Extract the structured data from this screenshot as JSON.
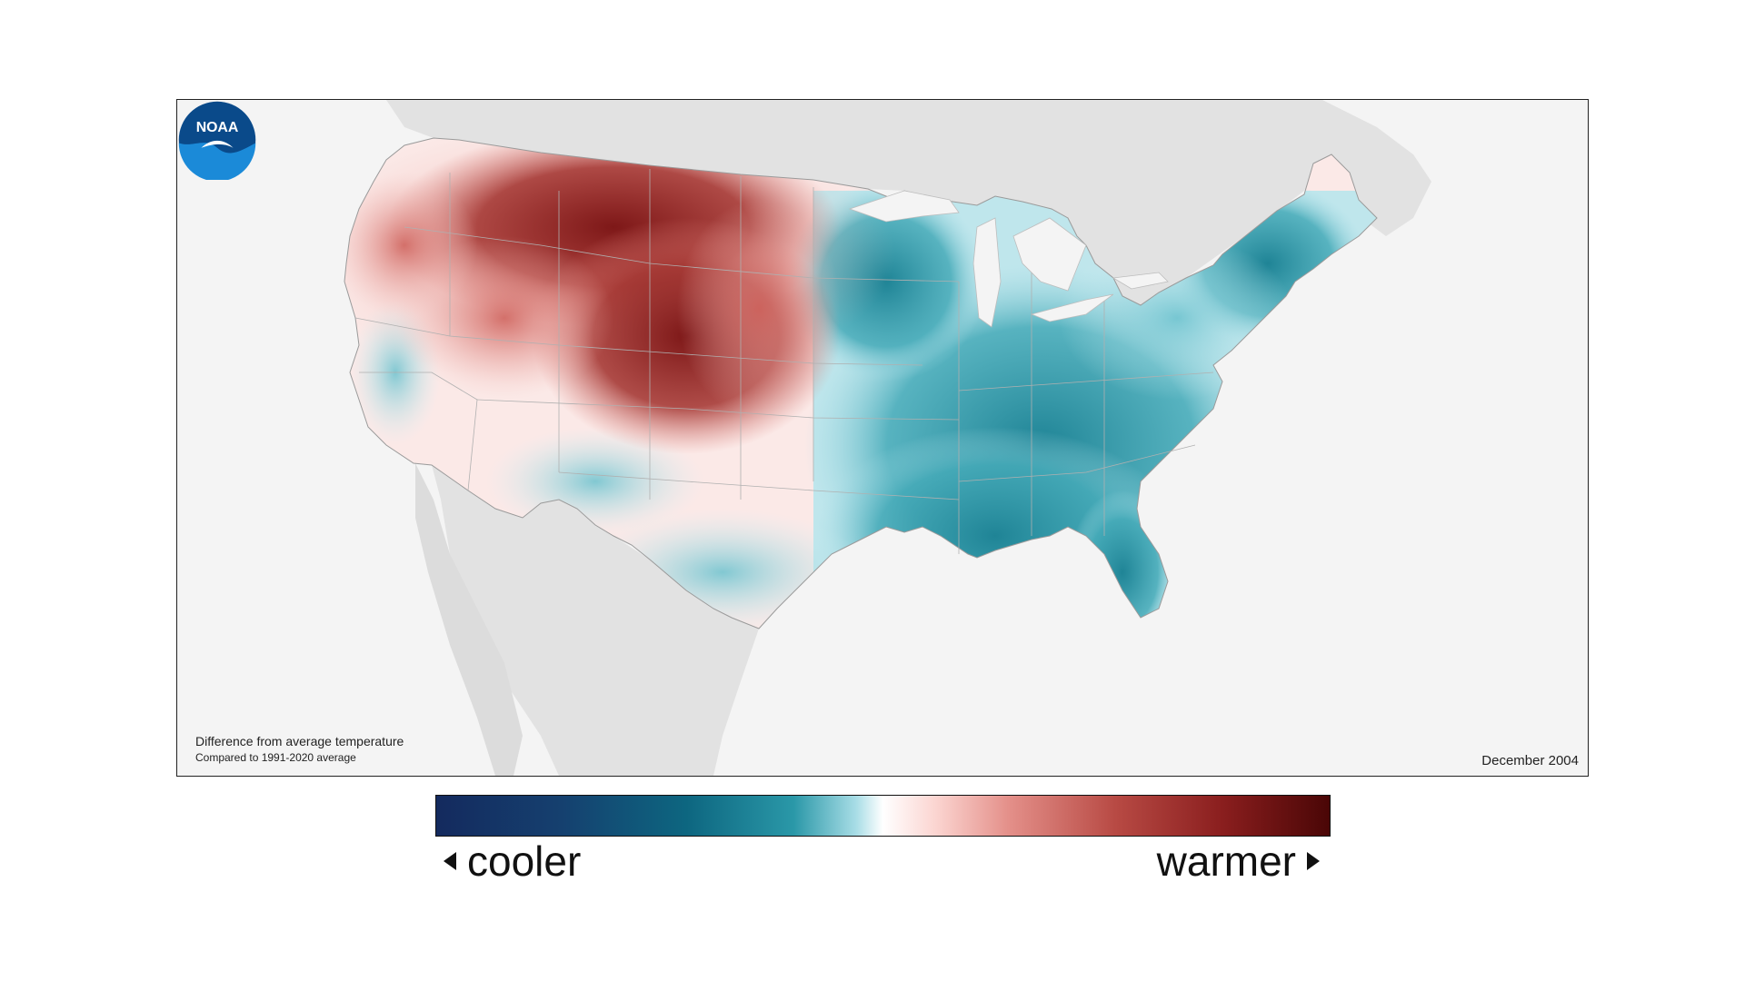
{
  "map": {
    "caption_title": "Difference from average temperature",
    "caption_subtitle": "Compared to 1991-2020 average",
    "date": "December 2004",
    "logo_text": "NOAA"
  },
  "legend": {
    "left_label": "cooler",
    "right_label": "warmer",
    "colors": [
      "#142a5e",
      "#0d6680",
      "#2a98a8",
      "#ffffff",
      "#e4908a",
      "#b84a44",
      "#4a0606"
    ]
  },
  "colors": {
    "warm": "#b84a44",
    "warm_dark": "#8a1e1e",
    "cool": "#2a98a8",
    "cool_dark": "#0d6680",
    "land_outside": "#e2e2e2",
    "ocean": "#f4f4f4"
  }
}
